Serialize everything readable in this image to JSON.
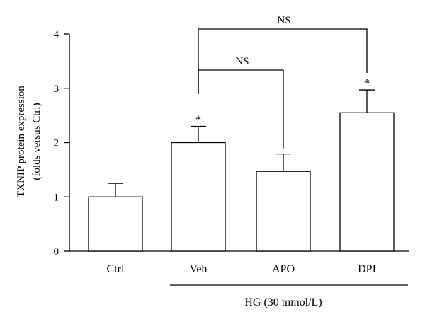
{
  "chart_data": {
    "type": "bar",
    "ylabel_lines": [
      "TXNIP protein expression",
      "(folds versus Ctrl)"
    ],
    "ylim": [
      0,
      4
    ],
    "yticks": [
      "0",
      "1",
      "2",
      "3",
      "4"
    ],
    "categories": [
      "Ctrl",
      "Veh",
      "APO",
      "DPI"
    ],
    "values": [
      1.0,
      2.0,
      1.47,
      2.55
    ],
    "errors": [
      0.25,
      0.3,
      0.32,
      0.42
    ],
    "significance": [
      "",
      "*",
      "",
      "*"
    ],
    "group_label": "HG (30 mmol/L)",
    "group_members": [
      "Veh",
      "APO",
      "DPI"
    ],
    "comparisons": [
      {
        "from": "Veh",
        "to": "APO",
        "label": "NS"
      },
      {
        "from": "Veh",
        "to": "DPI",
        "label": "NS"
      }
    ],
    "grid": false
  }
}
